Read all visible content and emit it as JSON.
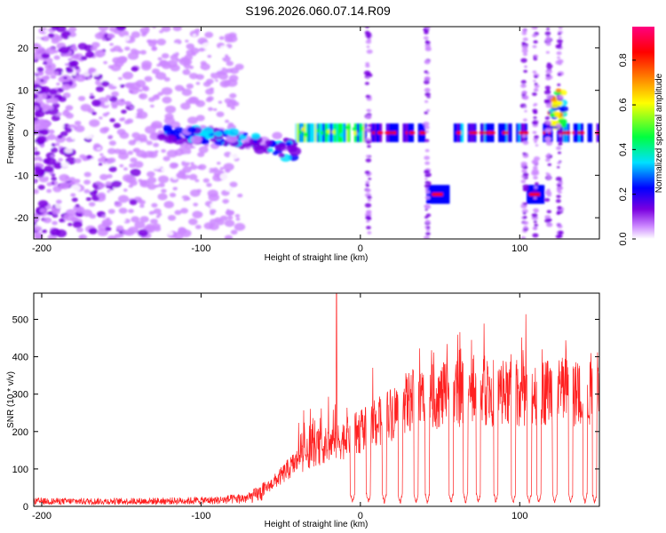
{
  "chart_data": [
    {
      "type": "heatmap",
      "title": "S196.2026.060.07.14.R09",
      "xlabel": "Height of straight line (km)",
      "ylabel": "Frequency (Hz)",
      "xlim": [
        -205,
        150
      ],
      "ylim": [
        -25,
        25
      ],
      "xticks": [
        -200,
        -100,
        0,
        100
      ],
      "yticks": [
        -20,
        -10,
        0,
        10,
        20
      ],
      "colorbar": {
        "label": "Normalized spectral amplitude",
        "range": [
          0.0,
          0.95
        ],
        "ticks": [
          "0.0",
          "0.2",
          "0.4",
          "0.6",
          "0.8"
        ],
        "colors": [
          "#ffffff",
          "#cc88ff",
          "#7a00e0",
          "#0000ff",
          "#00e0ff",
          "#00ff40",
          "#ffff00",
          "#ff8000",
          "#ff0000",
          "#ff0080"
        ]
      },
      "features": [
        {
          "name": "broadband noise",
          "x": [
            -205,
            -75
          ],
          "freq": [
            -25,
            25
          ],
          "amplitude": 0.15
        },
        {
          "name": "emerging tone",
          "x": [
            -125,
            -40
          ],
          "freq": [
            -10,
            2
          ],
          "amplitude": 0.35
        },
        {
          "name": "carrier tone",
          "x": [
            -40,
            150
          ],
          "freq": 0,
          "amplitude": 0.9
        },
        {
          "name": "offset tone 1",
          "x": [
            42,
            56
          ],
          "freq": -14.5,
          "amplitude": 0.9
        },
        {
          "name": "offset tone 2",
          "x": [
            105,
            115
          ],
          "freq": -14.5,
          "amplitude": 0.9
        },
        {
          "name": "drifting tone",
          "x": [
            120,
            128
          ],
          "freq": 6,
          "amplitude": 0.7
        },
        {
          "name": "vertical streaks",
          "x": [
            5,
            42,
            103,
            110,
            118,
            125
          ],
          "freq": [
            -25,
            25
          ],
          "amplitude": 0.2
        }
      ]
    },
    {
      "type": "line",
      "xlabel": "Height of straight line (km)",
      "ylabel": "SNR (10 * v/v)",
      "xlim": [
        -205,
        150
      ],
      "ylim": [
        0,
        570
      ],
      "xticks": [
        -200,
        -100,
        0,
        100
      ],
      "yticks": [
        0,
        100,
        200,
        300,
        400,
        500
      ],
      "color": "#ff2020",
      "series": [
        {
          "name": "SNR envelope",
          "x": [
            -205,
            -180,
            -150,
            -120,
            -90,
            -70,
            -60,
            -50,
            -40,
            -30,
            -20,
            -10,
            0,
            10,
            20,
            30,
            40,
            50,
            60,
            70,
            80,
            90,
            100,
            110,
            120,
            130,
            140,
            150
          ],
          "y": [
            15,
            15,
            15,
            16,
            18,
            25,
            45,
            80,
            120,
            150,
            165,
            180,
            200,
            220,
            250,
            280,
            290,
            295,
            300,
            300,
            305,
            300,
            305,
            305,
            310,
            305,
            300,
            300
          ]
        }
      ],
      "peak": {
        "x": -15,
        "y": 570
      },
      "dropouts_x": [
        -5,
        5,
        15,
        25,
        35,
        42,
        57,
        66,
        74,
        85,
        96,
        106,
        112,
        122,
        132,
        141,
        147
      ]
    }
  ]
}
